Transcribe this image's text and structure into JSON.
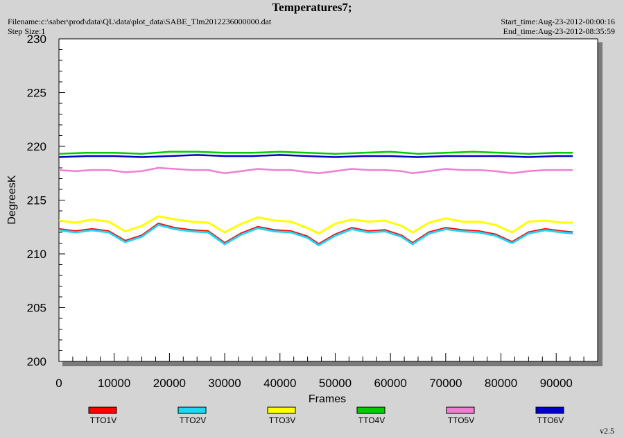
{
  "header": {
    "title": "Temperatures7;",
    "filename": "Filename:c:\\saber\\prod\\data\\QL\\data\\plot_data\\SABE_Tlm2012236000000.dat",
    "step_size": "Step Size:1",
    "start_time": "Start_time:Aug-23-2012-00:00:16",
    "end_time": "End_time:Aug-23-2012-08:35:59"
  },
  "footer": {
    "version": "v2.5"
  },
  "colors": {
    "TTO1V": "#ff0000",
    "TTO2V": "#22d4f0",
    "TTO3V": "#ffff00",
    "TTO4V": "#00cc00",
    "TTO5V": "#ee7fd0",
    "TTO6V": "#0000cc"
  },
  "chart_data": {
    "type": "line",
    "title": "Temperatures7;",
    "xlabel": "Frames",
    "ylabel": "DegreesK",
    "xlim": [
      0,
      97500
    ],
    "ylim": [
      200,
      230
    ],
    "xticks": [
      0,
      10000,
      20000,
      30000,
      40000,
      50000,
      60000,
      70000,
      80000,
      90000
    ],
    "yticks": [
      200,
      205,
      210,
      215,
      220,
      225,
      230
    ],
    "grid": false,
    "legend": "bottom",
    "series": [
      {
        "name": "TTO1V",
        "x": [
          0,
          3000,
          6000,
          9000,
          12000,
          15000,
          18000,
          21000,
          24000,
          27000,
          30000,
          33000,
          36000,
          39000,
          42000,
          45000,
          47000,
          50000,
          53000,
          56000,
          59000,
          62000,
          64000,
          67000,
          70000,
          73000,
          76000,
          79000,
          82000,
          85000,
          88000,
          91000,
          93000
        ],
        "values": [
          212.3,
          212.1,
          212.3,
          212.1,
          211.2,
          211.7,
          212.8,
          212.4,
          212.2,
          212.1,
          211.0,
          211.9,
          212.5,
          212.2,
          212.1,
          211.6,
          210.9,
          211.8,
          212.4,
          212.1,
          212.2,
          211.7,
          211.0,
          212.0,
          212.4,
          212.2,
          212.1,
          211.8,
          211.1,
          212.0,
          212.3,
          212.1,
          212.0
        ]
      },
      {
        "name": "TTO2V",
        "x": [
          0,
          3000,
          6000,
          9000,
          12000,
          15000,
          18000,
          21000,
          24000,
          27000,
          30000,
          33000,
          36000,
          39000,
          42000,
          45000,
          47000,
          50000,
          53000,
          56000,
          59000,
          62000,
          64000,
          67000,
          70000,
          73000,
          76000,
          79000,
          82000,
          85000,
          88000,
          91000,
          93000
        ],
        "values": [
          212.2,
          212.0,
          212.2,
          212.0,
          211.1,
          211.6,
          212.7,
          212.3,
          212.1,
          212.0,
          210.9,
          211.8,
          212.4,
          212.1,
          212.0,
          211.5,
          210.8,
          211.7,
          212.3,
          212.0,
          212.1,
          211.6,
          210.9,
          211.9,
          212.3,
          212.1,
          212.0,
          211.7,
          211.0,
          211.9,
          212.2,
          212.0,
          211.9
        ]
      },
      {
        "name": "TTO3V",
        "x": [
          0,
          3000,
          6000,
          9000,
          12000,
          15000,
          18000,
          21000,
          24000,
          27000,
          30000,
          33000,
          36000,
          39000,
          42000,
          45000,
          47000,
          50000,
          53000,
          56000,
          59000,
          62000,
          64000,
          67000,
          70000,
          73000,
          76000,
          79000,
          82000,
          85000,
          88000,
          91000,
          93000
        ],
        "values": [
          213.1,
          212.9,
          213.2,
          213.0,
          212.1,
          212.6,
          213.5,
          213.2,
          213.0,
          212.9,
          212.0,
          212.8,
          213.4,
          213.1,
          213.0,
          212.4,
          211.9,
          212.8,
          213.2,
          213.0,
          213.1,
          212.6,
          212.0,
          212.9,
          213.3,
          213.0,
          213.0,
          212.7,
          212.0,
          213.0,
          213.1,
          212.9,
          212.9
        ]
      },
      {
        "name": "TTO4V",
        "x": [
          0,
          5000,
          10000,
          15000,
          20000,
          25000,
          30000,
          35000,
          40000,
          45000,
          50000,
          55000,
          60000,
          65000,
          70000,
          75000,
          80000,
          85000,
          90000,
          93000
        ],
        "values": [
          219.3,
          219.4,
          219.4,
          219.3,
          219.5,
          219.5,
          219.4,
          219.4,
          219.5,
          219.4,
          219.3,
          219.4,
          219.5,
          219.3,
          219.4,
          219.5,
          219.4,
          219.3,
          219.4,
          219.4
        ]
      },
      {
        "name": "TTO5V",
        "x": [
          0,
          3000,
          6000,
          9000,
          12000,
          15000,
          18000,
          21000,
          24000,
          27000,
          30000,
          33000,
          36000,
          39000,
          42000,
          45000,
          47000,
          50000,
          53000,
          56000,
          59000,
          62000,
          64000,
          67000,
          70000,
          73000,
          76000,
          79000,
          82000,
          85000,
          88000,
          91000,
          93000
        ],
        "values": [
          217.8,
          217.7,
          217.8,
          217.8,
          217.6,
          217.7,
          218.0,
          217.9,
          217.8,
          217.8,
          217.5,
          217.7,
          217.9,
          217.8,
          217.8,
          217.6,
          217.5,
          217.7,
          217.9,
          217.8,
          217.8,
          217.7,
          217.5,
          217.7,
          217.9,
          217.8,
          217.8,
          217.7,
          217.5,
          217.7,
          217.8,
          217.8,
          217.8
        ]
      },
      {
        "name": "TTO6V",
        "x": [
          0,
          5000,
          10000,
          15000,
          20000,
          25000,
          30000,
          35000,
          40000,
          45000,
          50000,
          55000,
          60000,
          65000,
          70000,
          75000,
          80000,
          85000,
          90000,
          93000
        ],
        "values": [
          219.0,
          219.1,
          219.1,
          219.0,
          219.1,
          219.2,
          219.1,
          219.1,
          219.2,
          219.1,
          219.0,
          219.1,
          219.1,
          219.0,
          219.1,
          219.1,
          219.1,
          219.0,
          219.1,
          219.1
        ]
      }
    ]
  }
}
